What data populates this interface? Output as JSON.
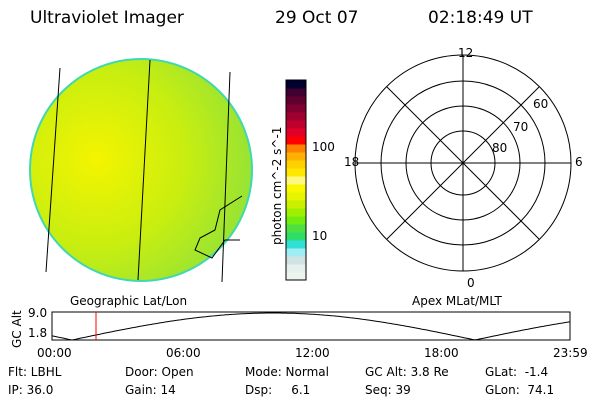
{
  "header": {
    "instrument": "Ultraviolet Imager",
    "date": "29 Oct 07",
    "time": "02:18:49 UT"
  },
  "colorbar": {
    "label": "photon cm^-2 s^-1",
    "ticks": [
      "100",
      "10"
    ],
    "colors": [
      "#eef5f0",
      "#e6f0ec",
      "#d0e2e2",
      "#a0eef4",
      "#2ee0d8",
      "#2edc6a",
      "#4ee040",
      "#70ec10",
      "#a0ee00",
      "#c8f000",
      "#e6f400",
      "#f8f800",
      "#fff880",
      "#ffe800",
      "#ffd000",
      "#ffb000",
      "#ff8000",
      "#ff0000",
      "#e00028",
      "#c0002c",
      "#a00030",
      "#800030",
      "#600030",
      "#400030",
      "#000030"
    ]
  },
  "polar": {
    "labels": {
      "top": "12",
      "bottom": "0",
      "left": "18",
      "right": "6"
    },
    "rings": [
      "60",
      "70",
      "80"
    ],
    "caption": "Apex MLat/MLT"
  },
  "globe": {
    "caption": "Geographic Lat/Lon"
  },
  "alt_plot": {
    "ylabel": "GC Alt",
    "yticks": [
      "9.0",
      "1.8"
    ],
    "xticks": [
      "00:00",
      "06:00",
      "12:00",
      "18:00",
      "23:59"
    ],
    "current_time_marker": "02:18",
    "marker_color": "#ff0000"
  },
  "status": {
    "row1": [
      "Flt: LBHL",
      "Door: Open",
      "Mode: Normal",
      "GC Alt: 3.8 Re",
      "GLat:  -1.4"
    ],
    "row2": [
      "IP: 36.0",
      "Gain: 14",
      "Dsp:     6.1",
      "Seq: 39",
      "GLon:  74.1"
    ]
  }
}
